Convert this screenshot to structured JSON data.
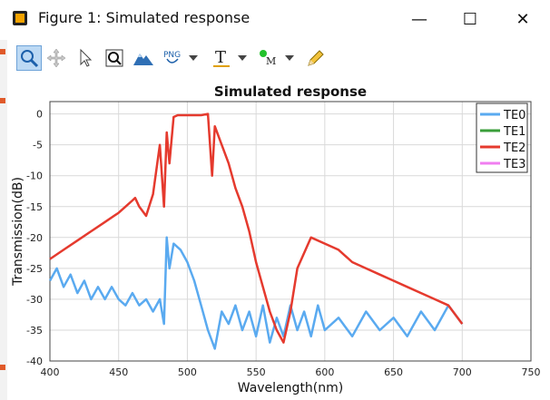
{
  "window": {
    "title": "Figure 1: Simulated response"
  },
  "toolbar": {
    "buttons": [
      {
        "name": "zoom-icon",
        "active": true
      },
      {
        "name": "pan-icon"
      },
      {
        "name": "select-cursor-icon"
      },
      {
        "name": "zoom-rect-icon"
      },
      {
        "name": "mountain-icon"
      },
      {
        "name": "png-export-icon"
      },
      {
        "name": "text-tool-icon"
      },
      {
        "name": "marker-tool-icon"
      },
      {
        "name": "pencil-icon"
      }
    ],
    "png_label": "PNG",
    "text_label": "T",
    "marker_label": "M"
  },
  "chart_data": {
    "type": "line",
    "title": "Simulated response",
    "xlabel": "Wavelength(nm)",
    "ylabel": "Transmission(dB)",
    "xlim": [
      400,
      750
    ],
    "ylim": [
      -40,
      2
    ],
    "xticks": [
      400,
      450,
      500,
      550,
      600,
      650,
      700,
      750
    ],
    "yticks": [
      0,
      -5,
      -10,
      -15,
      -20,
      -25,
      -30,
      -35,
      -40
    ],
    "grid": true,
    "legend_position": "top-right",
    "series": [
      {
        "name": "TE0",
        "color": "#5aaaf0",
        "x": [
          400,
          405,
          410,
          415,
          420,
          425,
          430,
          435,
          440,
          445,
          450,
          455,
          460,
          465,
          470,
          475,
          480,
          483,
          485,
          487,
          490,
          495,
          500,
          505,
          510,
          515,
          520,
          525,
          530,
          535,
          540,
          545,
          550,
          555,
          560,
          565,
          570,
          575,
          580,
          585,
          590,
          595,
          600,
          610,
          620,
          630,
          640,
          650,
          660,
          670,
          680,
          690,
          700
        ],
        "y": [
          -27,
          -25,
          -28,
          -26,
          -29,
          -27,
          -30,
          -28,
          -30,
          -28,
          -30,
          -31,
          -29,
          -31,
          -30,
          -32,
          -30,
          -34,
          -20,
          -25,
          -21,
          -22,
          -24,
          -27,
          -31,
          -35,
          -38,
          -32,
          -34,
          -31,
          -35,
          -32,
          -36,
          -31,
          -37,
          -33,
          -36,
          -31,
          -35,
          -32,
          -36,
          -31,
          -35,
          -33,
          -36,
          -32,
          -35,
          -33,
          -36,
          -32,
          -35,
          -31,
          -34
        ]
      },
      {
        "name": "TE1",
        "color": "#3a9e3a",
        "x": [],
        "y": []
      },
      {
        "name": "TE2",
        "color": "#e53a2e",
        "x": [
          400,
          410,
          420,
          430,
          440,
          450,
          455,
          460,
          462,
          465,
          470,
          475,
          480,
          483,
          485,
          487,
          490,
          493,
          495,
          500,
          505,
          510,
          515,
          518,
          520,
          525,
          530,
          535,
          540,
          545,
          550,
          555,
          560,
          565,
          570,
          575,
          580,
          590,
          600,
          610,
          620,
          630,
          640,
          650,
          660,
          670,
          680,
          690,
          700
        ],
        "y": [
          -23.5,
          -22,
          -20.5,
          -19,
          -17.5,
          -16,
          -15,
          -14,
          -13.6,
          -15,
          -16.5,
          -13,
          -5,
          -15,
          -3,
          -8,
          -0.5,
          -0.2,
          -0.2,
          -0.2,
          -0.2,
          -0.2,
          0,
          -10,
          -2,
          -5,
          -8,
          -12,
          -15,
          -19,
          -24,
          -28,
          -32,
          -35,
          -37,
          -32,
          -25,
          -20,
          -21,
          -22,
          -24,
          -25,
          -26,
          -27,
          -28,
          -29,
          -30,
          -31,
          -34
        ]
      },
      {
        "name": "TE3",
        "color": "#f07ef0",
        "x": [],
        "y": []
      }
    ]
  }
}
